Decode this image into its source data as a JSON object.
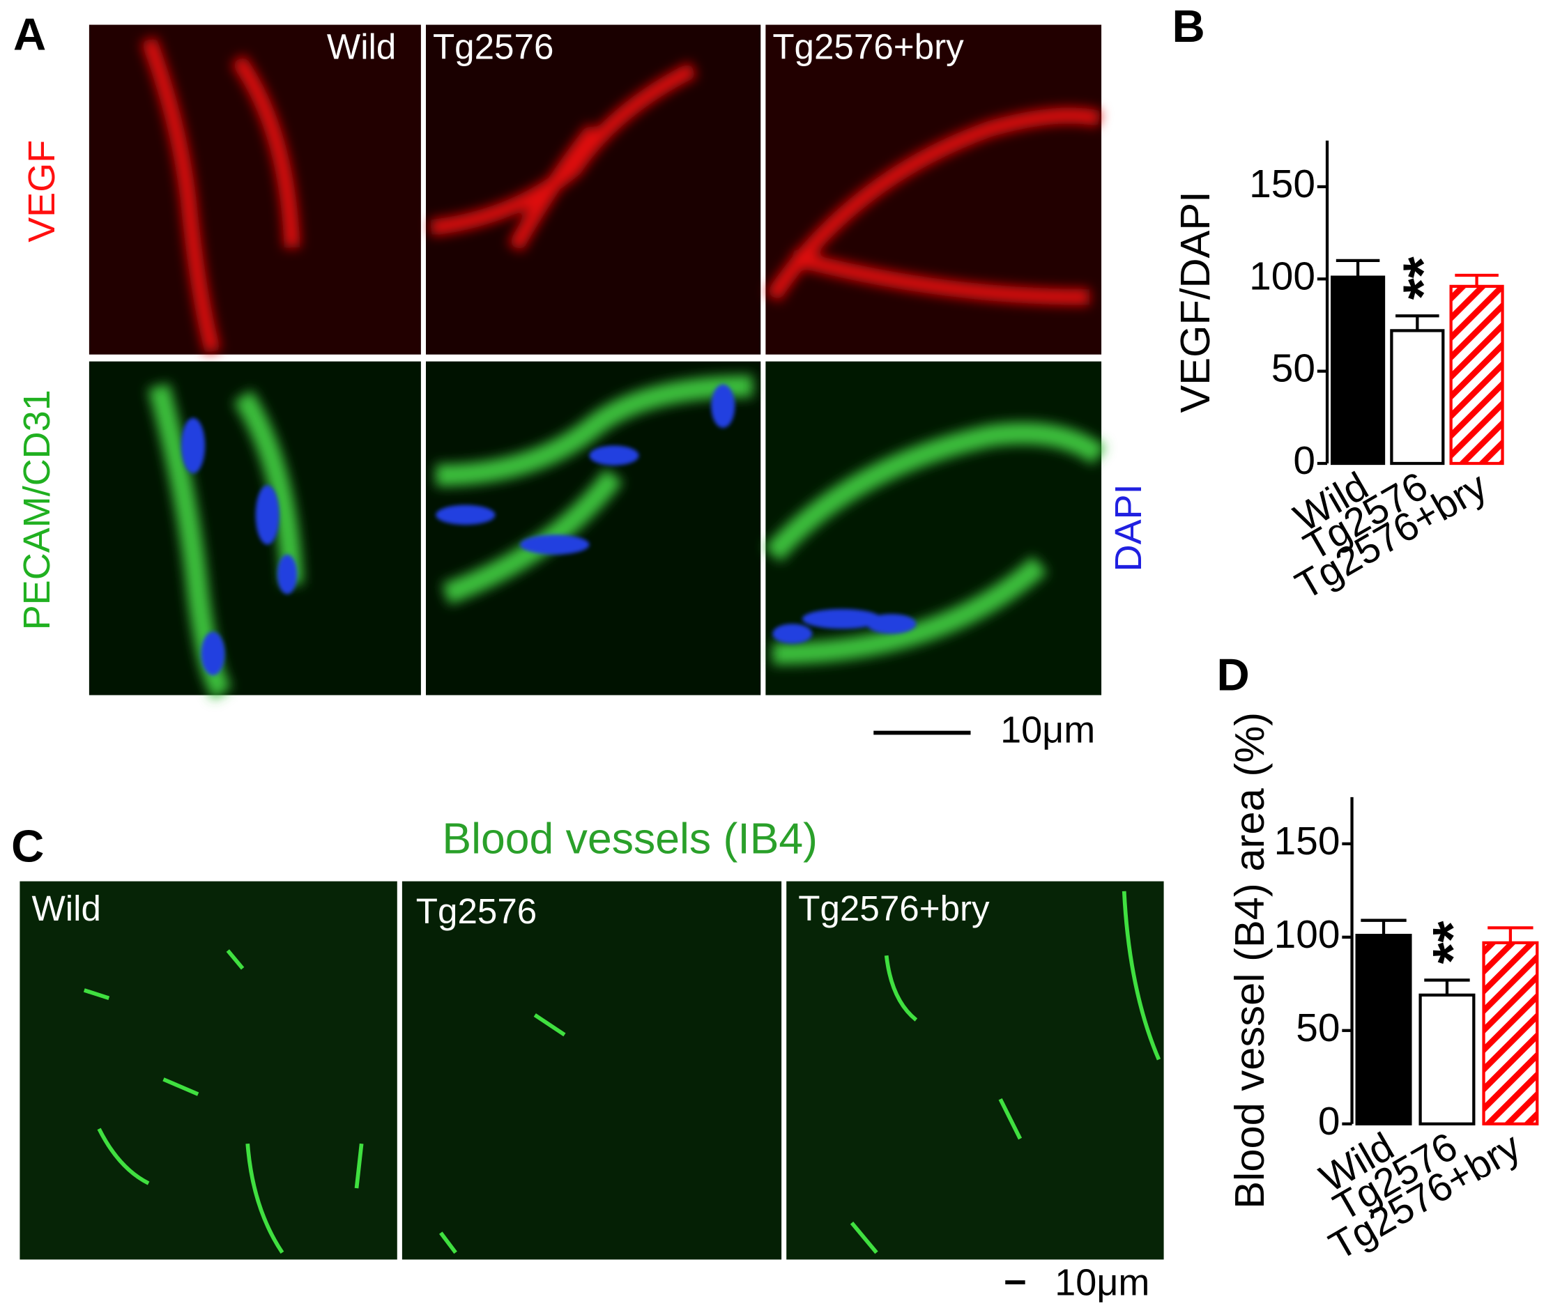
{
  "panels": {
    "A": "A",
    "B": "B",
    "C": "C",
    "D": "D"
  },
  "panel_a": {
    "columns": [
      "Wild",
      "Tg2576",
      "Tg2576+bry"
    ],
    "row_top": "VEGF",
    "row_bottom": "PECAM/CD31",
    "counterstain": "DAPI",
    "scale": "10μm"
  },
  "panel_c": {
    "title": "Blood vessels (IB4)",
    "columns": [
      "Wild",
      "Tg2576",
      "Tg2576+bry"
    ],
    "scale": "10μm"
  },
  "chart_data": [
    {
      "type": "bar",
      "ylabel": "VEGF/DAPI",
      "categories": [
        "Wild",
        "Tg2576",
        "Tg2576+bry"
      ],
      "values": [
        101,
        72,
        96
      ],
      "errors": [
        9,
        8,
        6
      ],
      "colors": [
        "#000000",
        "#000000",
        "#ff0000"
      ],
      "fill": [
        "solid",
        "none",
        "hatch"
      ],
      "ylim": [
        0,
        175
      ],
      "yticks": [
        0,
        50,
        100,
        150
      ],
      "annotations": [
        {
          "text": "**"
        }
      ]
    },
    {
      "type": "bar",
      "ylabel": "Blood vessel (B4) area (%)",
      "categories": [
        "Wild",
        "Tg2576",
        "Tg2576+bry"
      ],
      "values": [
        101,
        69,
        97
      ],
      "errors": [
        8,
        8,
        8
      ],
      "colors": [
        "#000000",
        "#000000",
        "#ff0000"
      ],
      "fill": [
        "solid",
        "none",
        "hatch"
      ],
      "ylim": [
        0,
        175
      ],
      "yticks": [
        0,
        50,
        100,
        150
      ],
      "annotations": [
        {
          "text": "**"
        }
      ]
    }
  ]
}
